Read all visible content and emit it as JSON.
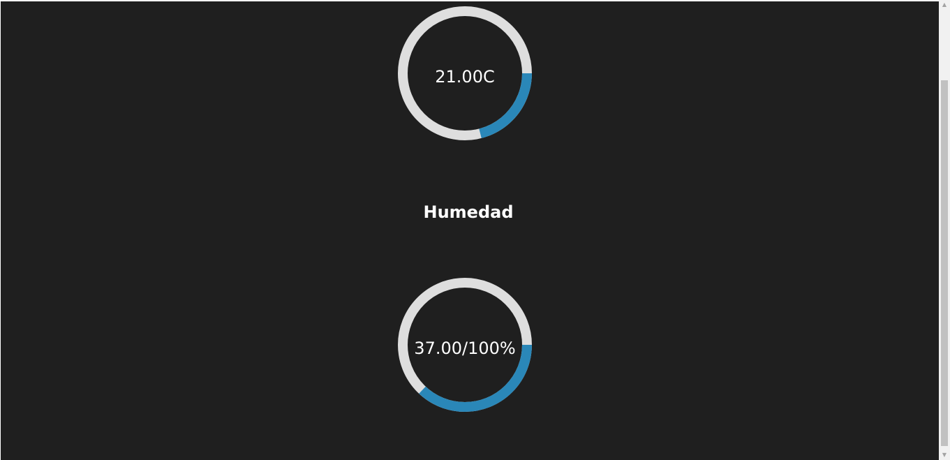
{
  "colors": {
    "background": "#1f1f1f",
    "gauge_track": "#dedede",
    "gauge_fill": "#2a87b8",
    "text": "#ffffff"
  },
  "temperature": {
    "value_label": "21.00C",
    "fill_fraction": 0.21
  },
  "humidity": {
    "title": "Humedad",
    "value_label": "37.00/100%",
    "fill_fraction": 0.37
  },
  "scrollbar": {
    "up_icon": "triangle-up-icon",
    "down_icon": "triangle-down-icon"
  }
}
